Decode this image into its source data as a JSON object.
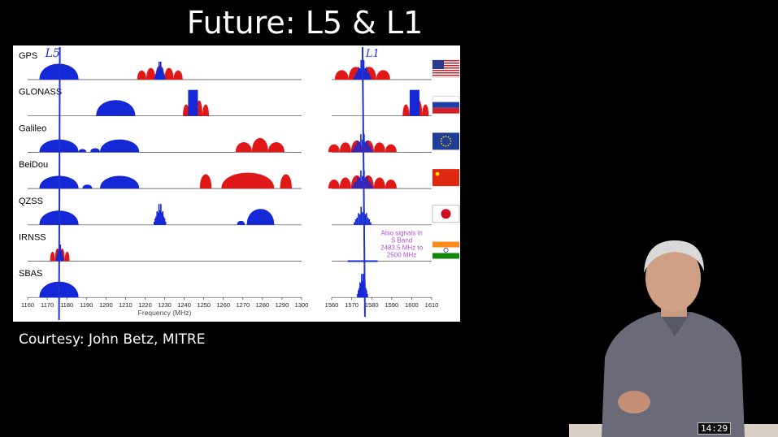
{
  "slide": {
    "title": "Future: L5 & L1",
    "courtesy": "Courtesy: John Betz, MITRE"
  },
  "figure": {
    "systems": [
      "GPS",
      "GLONASS",
      "Galileo",
      "BeiDou",
      "QZSS",
      "IRNSS",
      "SBAS"
    ],
    "left_axis": {
      "ticks": [
        "1160",
        "1170",
        "1180",
        "1190",
        "1200",
        "1210",
        "1220",
        "1230",
        "1240",
        "1250",
        "1260",
        "1270",
        "1280",
        "1290",
        "1300"
      ]
    },
    "right_axis": {
      "ticks": [
        "1560",
        "1570",
        "1580",
        "1590",
        "1600",
        "1610"
      ]
    },
    "xlabel": "Frequency (MHz)",
    "note": [
      "Also signals in",
      "S Band",
      "2483.5 MHz to",
      "2500 MHz"
    ],
    "handwritten": {
      "l5": "L5",
      "l1": "L1"
    },
    "colors": {
      "blue": "#1428d8",
      "red": "#e01818",
      "note": "#b050d0"
    }
  },
  "video": {
    "timestamp": "14:29"
  }
}
